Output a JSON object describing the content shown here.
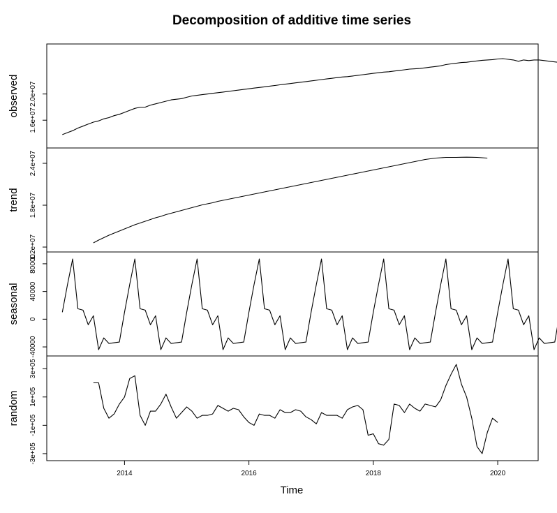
{
  "chart_data": {
    "type": "line",
    "title": "Decomposition of additive time series",
    "xlabel": "Time",
    "xlim": [
      2012.75,
      2020.65
    ],
    "x_ticks": [
      2014,
      2016,
      2018,
      2020
    ],
    "x_tick_labels": [
      "2014",
      "2016",
      "2018",
      "2020"
    ],
    "series_start": 2013.0,
    "frequency": 12,
    "panels": [
      {
        "name": "observed",
        "ylabel": "observed",
        "ylim": [
          12400000,
          27000000
        ],
        "y_ticks": [
          16000000,
          20000000
        ],
        "y_tick_labels": [
          "1.6e+07",
          "2.0e+07"
        ],
        "values": [
          13800000,
          14100000,
          14400000,
          14800000,
          15100000,
          15400000,
          15700000,
          15900000,
          16200000,
          16400000,
          16700000,
          16900000,
          17200000,
          17500000,
          17800000,
          18000000,
          18000000,
          18300000,
          18500000,
          18700000,
          18900000,
          19100000,
          19200000,
          19300000,
          19500000,
          19700000,
          19800000,
          19900000,
          20000000,
          20100000,
          20200000,
          20300000,
          20400000,
          20500000,
          20600000,
          20700000,
          20800000,
          20900000,
          21000000,
          21100000,
          21200000,
          21300000,
          21400000,
          21500000,
          21600000,
          21700000,
          21800000,
          21900000,
          22000000,
          22100000,
          22200000,
          22300000,
          22400000,
          22500000,
          22600000,
          22650000,
          22750000,
          22850000,
          22950000,
          23050000,
          23150000,
          23250000,
          23350000,
          23400000,
          23500000,
          23600000,
          23700000,
          23800000,
          23850000,
          23900000,
          24000000,
          24100000,
          24200000,
          24300000,
          24500000,
          24600000,
          24700000,
          24800000,
          24850000,
          24950000,
          25050000,
          25150000,
          25200000,
          25250000,
          25350000,
          25400000,
          25300000,
          25200000,
          25000000,
          25200000,
          25100000,
          25200000,
          25200000,
          25100000,
          25000000,
          24900000,
          24800000
        ]
      },
      {
        "name": "trend",
        "ylabel": "trend",
        "ylim": [
          11900000,
          25600000
        ],
        "y_ticks": [
          12000000,
          18000000,
          24000000
        ],
        "y_tick_labels": [
          "1.2e+07",
          "1.8e+07",
          "2.4e+07"
        ],
        "values": [
          null,
          null,
          null,
          null,
          null,
          null,
          12600000,
          13000000,
          13350000,
          13700000,
          14000000,
          14300000,
          14600000,
          14900000,
          15200000,
          15450000,
          15700000,
          15950000,
          16200000,
          16400000,
          16650000,
          16850000,
          17050000,
          17250000,
          17450000,
          17650000,
          17850000,
          18050000,
          18200000,
          18350000,
          18550000,
          18700000,
          18850000,
          19000000,
          19150000,
          19300000,
          19450000,
          19600000,
          19750000,
          19900000,
          20050000,
          20200000,
          20350000,
          20500000,
          20650000,
          20800000,
          20950000,
          21100000,
          21250000,
          21400000,
          21550000,
          21700000,
          21850000,
          22000000,
          22150000,
          22300000,
          22450000,
          22600000,
          22750000,
          22900000,
          23050000,
          23200000,
          23350000,
          23500000,
          23650000,
          23800000,
          23950000,
          24100000,
          24250000,
          24400000,
          24550000,
          24650000,
          24750000,
          24800000,
          24850000,
          24850000,
          24850000,
          24870000,
          24880000,
          24870000,
          24850000,
          24800000,
          24750000,
          null,
          null,
          null,
          null,
          null,
          null
        ]
      },
      {
        "name": "seasonal",
        "ylabel": "seasonal",
        "ylim": [
          -47000,
          91000
        ],
        "y_ticks": [
          -40000,
          0,
          40000,
          80000
        ],
        "y_tick_labels": [
          "-40000",
          "0",
          "40000",
          "80000"
        ],
        "values": [
          10000,
          50000,
          87000,
          15000,
          13000,
          -8000,
          5000,
          -44000,
          -27000,
          -35000,
          -34000,
          -33000
        ]
      },
      {
        "name": "random",
        "ylabel": "random",
        "ylim": [
          -320000,
          360000
        ],
        "y_ticks": [
          -300000,
          -100000,
          100000,
          300000
        ],
        "y_tick_labels": [
          "-3e+05",
          "-1e+05",
          "1e+05",
          "3e+05"
        ],
        "values": [
          null,
          null,
          null,
          null,
          null,
          null,
          200000,
          200000,
          20000,
          -50000,
          -20000,
          50000,
          100000,
          230000,
          250000,
          -30000,
          -100000,
          0,
          0,
          50000,
          120000,
          30000,
          -50000,
          -10000,
          30000,
          0,
          -50000,
          -30000,
          -30000,
          -20000,
          40000,
          20000,
          0,
          20000,
          10000,
          -40000,
          -80000,
          -100000,
          -20000,
          -30000,
          -30000,
          -50000,
          10000,
          -10000,
          -10000,
          10000,
          0,
          -40000,
          -60000,
          -90000,
          -10000,
          -30000,
          -30000,
          -30000,
          -50000,
          10000,
          30000,
          40000,
          10000,
          -170000,
          -160000,
          -230000,
          -240000,
          -200000,
          50000,
          40000,
          -10000,
          50000,
          20000,
          0,
          50000,
          40000,
          30000,
          80000,
          180000,
          260000,
          330000,
          190000,
          100000,
          -50000,
          -250000,
          -300000,
          -150000,
          -50000,
          -80000,
          null,
          null,
          null,
          null,
          null,
          null
        ]
      }
    ]
  }
}
